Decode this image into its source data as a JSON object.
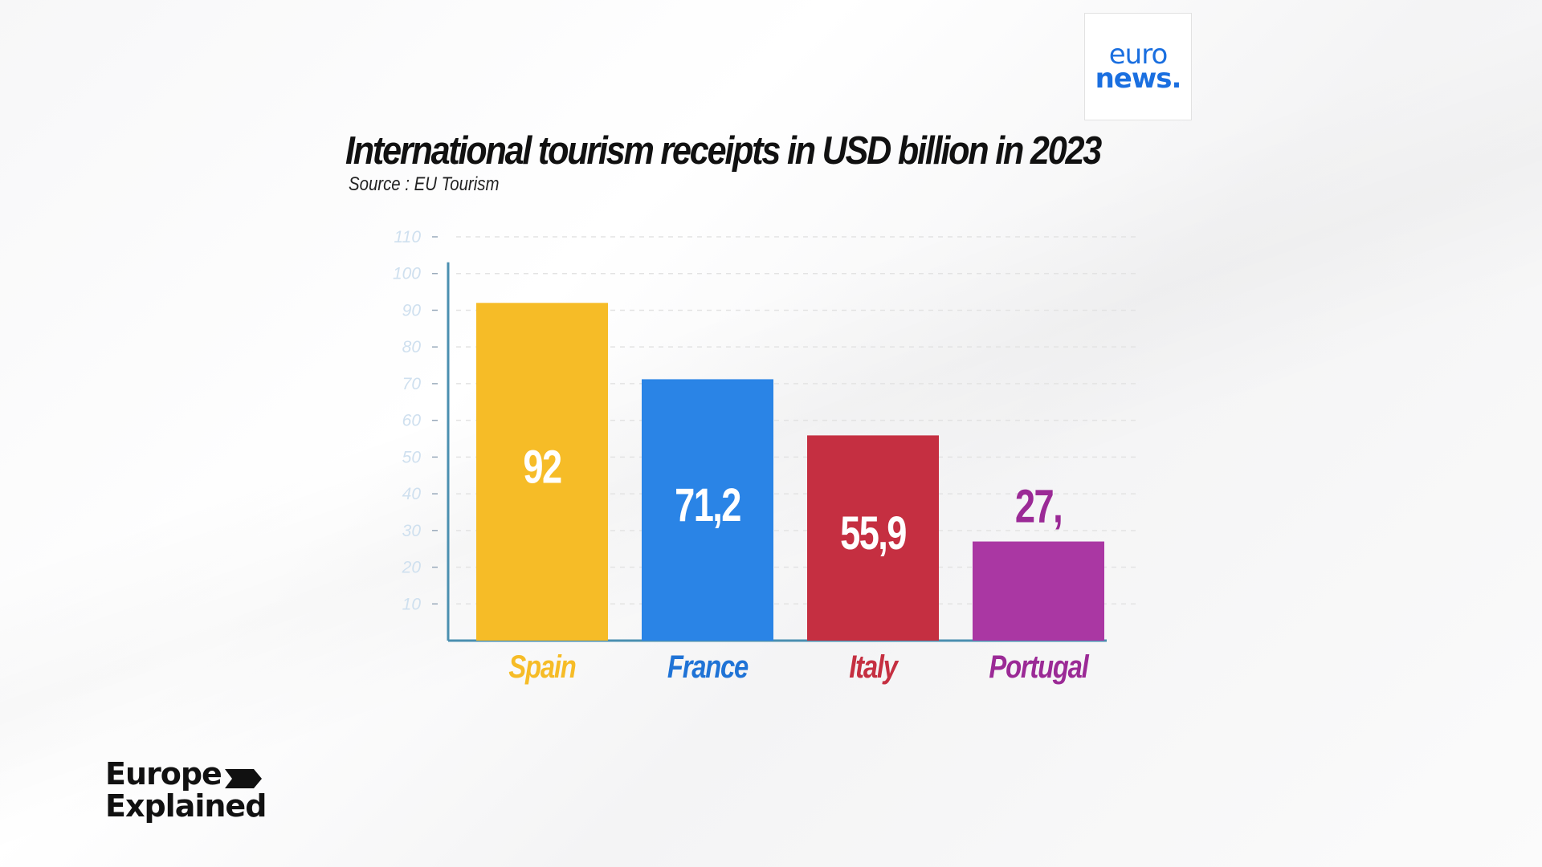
{
  "logo": {
    "line1": "euro",
    "line2": "news."
  },
  "brand": {
    "line1": "Europe",
    "line2": "Explained",
    "arrow_icon": "chevron-arrow-icon"
  },
  "chart_data": {
    "type": "bar",
    "title": "International tourism receipts in USD billion in 2023",
    "subtitle": "Source : EU Tourism",
    "categories": [
      "Spain",
      "France",
      "Italy",
      "Portugal"
    ],
    "values": [
      92,
      71.2,
      55.9,
      27
    ],
    "value_labels": [
      "92",
      "71,2",
      "55,9",
      "27,"
    ],
    "colors": [
      "#f6bc27",
      "#2a84e6",
      "#c52f41",
      "#aa37a3"
    ],
    "label_colors": [
      "#f6bc27",
      "#1f73d6",
      "#c52f41",
      "#9b2a96"
    ],
    "yticks": [
      10,
      20,
      30,
      40,
      50,
      60,
      70,
      80,
      90,
      100,
      110
    ],
    "ylim": [
      0,
      110
    ],
    "grid": true
  }
}
